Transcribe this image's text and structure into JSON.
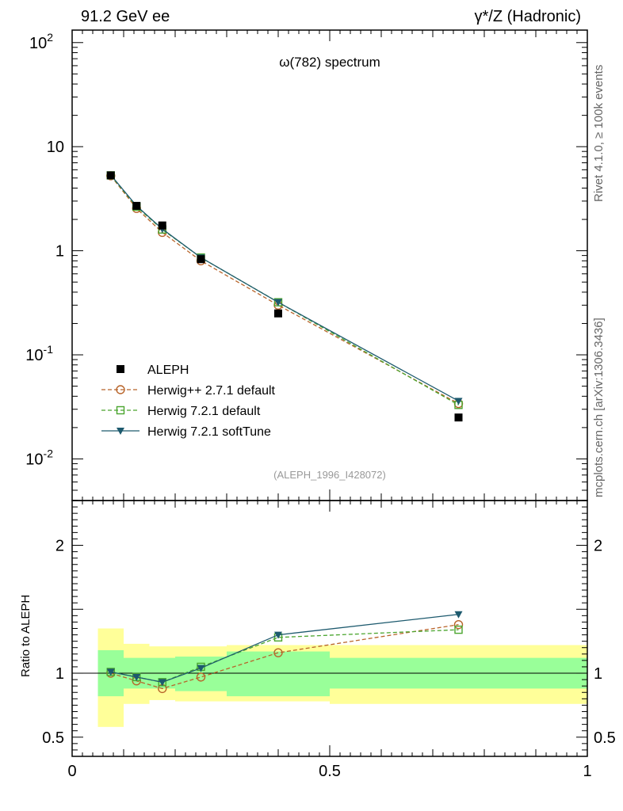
{
  "header": {
    "left": "91.2 GeV ee",
    "right": "γ*/Z (Hadronic)"
  },
  "side_labels": {
    "top": "Rivet 4.1.0, ≥ 100k events",
    "bottom": "mcplots.cern.ch [arXiv:1306.3436]"
  },
  "colors": {
    "data": "#000000",
    "herwigpp": "#b8642a",
    "herwig721": "#4aa52e",
    "softtune": "#1d5a6e",
    "band_inner": "#99ff99",
    "band_outer": "#ffff99"
  },
  "chart_data": [
    {
      "type": "scatter",
      "title": "ω(782) spectrum",
      "watermark": "(ALEPH_1996_I428072)",
      "yscale": "log",
      "xlim": [
        0,
        1
      ],
      "ylim": [
        0.004,
        150
      ],
      "ytick_labels": [
        "10^-2",
        "10^-1",
        "1",
        "10",
        "10^2"
      ],
      "legend_position": "bottom-left",
      "series": [
        {
          "name": "ALEPH",
          "style": "data",
          "x": [
            0.075,
            0.125,
            0.175,
            0.25,
            0.4,
            0.75
          ],
          "y": [
            5.3,
            2.7,
            1.75,
            0.83,
            0.25,
            0.025
          ]
        },
        {
          "name": "Herwig++ 2.7.1 default",
          "style": "circle-dashed",
          "x": [
            0.075,
            0.125,
            0.175,
            0.25,
            0.4,
            0.75
          ],
          "y": [
            5.25,
            2.55,
            1.5,
            0.8,
            0.3,
            0.034
          ]
        },
        {
          "name": "Herwig 7.2.1 default",
          "style": "square-dashed",
          "x": [
            0.075,
            0.125,
            0.175,
            0.25,
            0.4,
            0.75
          ],
          "y": [
            5.3,
            2.65,
            1.6,
            0.86,
            0.32,
            0.033
          ]
        },
        {
          "name": "Herwig 7.2.1 softTune",
          "style": "triangle-solid",
          "x": [
            0.075,
            0.125,
            0.175,
            0.25,
            0.4,
            0.75
          ],
          "y": [
            5.35,
            2.7,
            1.62,
            0.86,
            0.32,
            0.036
          ]
        }
      ]
    },
    {
      "type": "line",
      "ylabel": "Ratio to ALEPH",
      "xlim": [
        0,
        1
      ],
      "ylim": [
        0.35,
        2.35
      ],
      "xtick_labels": [
        "0",
        "0.5",
        "1"
      ],
      "ytick_labels": [
        "0.5",
        "1",
        "2"
      ],
      "bands": {
        "edges": [
          0.05,
          0.1,
          0.15,
          0.2,
          0.3,
          0.5,
          1.0
        ],
        "inner_lo": [
          0.82,
          0.88,
          0.88,
          0.86,
          0.82,
          0.88
        ],
        "inner_hi": [
          1.18,
          1.12,
          1.12,
          1.13,
          1.17,
          1.12
        ],
        "outer_lo": [
          0.58,
          0.76,
          0.79,
          0.78,
          0.78,
          0.76
        ],
        "outer_hi": [
          1.35,
          1.23,
          1.21,
          1.21,
          1.22,
          1.22
        ]
      },
      "series": [
        {
          "name": "Herwig++ 2.7.1 default",
          "style": "circle-dashed",
          "x": [
            0.075,
            0.125,
            0.175,
            0.25,
            0.4,
            0.75
          ],
          "y": [
            1.0,
            0.94,
            0.88,
            0.97,
            1.16,
            1.38
          ]
        },
        {
          "name": "Herwig 7.2.1 default",
          "style": "square-dashed",
          "x": [
            0.075,
            0.125,
            0.175,
            0.25,
            0.4,
            0.75
          ],
          "y": [
            1.01,
            0.97,
            0.93,
            1.05,
            1.28,
            1.34
          ]
        },
        {
          "name": "Herwig 7.2.1 softTune",
          "style": "triangle-solid",
          "x": [
            0.075,
            0.125,
            0.175,
            0.25,
            0.4,
            0.75
          ],
          "y": [
            1.01,
            0.97,
            0.93,
            1.04,
            1.3,
            1.46
          ]
        }
      ]
    }
  ]
}
